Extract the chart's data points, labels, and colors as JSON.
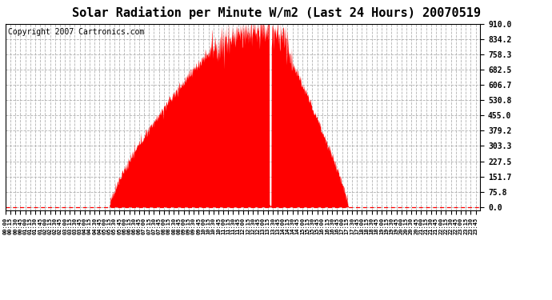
{
  "title": "Solar Radiation per Minute W/m2 (Last 24 Hours) 20070519",
  "copyright_text": "Copyright 2007 Cartronics.com",
  "fill_color": "#FF0000",
  "background_color": "#FFFFFF",
  "plot_bg_color": "#FFFFFF",
  "grid_color": "#AAAAAA",
  "dashed_line_color": "#FF0000",
  "y_ticks": [
    0.0,
    75.8,
    151.7,
    227.5,
    303.3,
    379.2,
    455.0,
    530.8,
    606.7,
    682.5,
    758.3,
    834.2,
    910.0
  ],
  "y_max": 910.0,
  "y_min": -15.0,
  "num_minutes": 1440,
  "title_fontsize": 11,
  "copyright_fontsize": 7
}
